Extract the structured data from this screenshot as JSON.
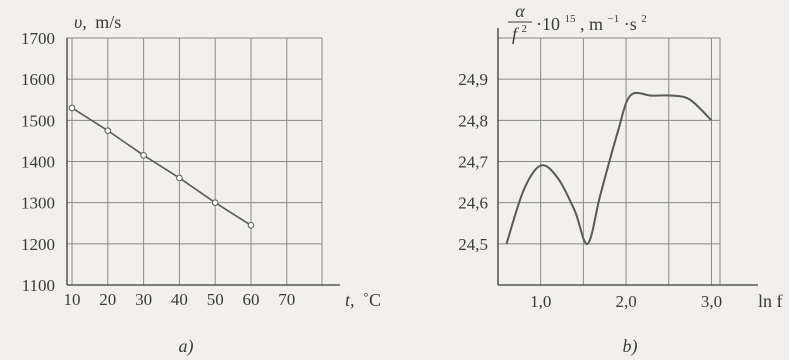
{
  "chart_data": [
    {
      "type": "line",
      "panel": "a)",
      "ylabel_symbol": "υ,",
      "ylabel_unit": "m/s",
      "xlabel_symbol": "t,",
      "xlabel_unit": "˚C",
      "xlim": [
        0,
        70
      ],
      "ylim": [
        1100,
        1700
      ],
      "x_ticks": [
        "10",
        "20",
        "30",
        "40",
        "50",
        "60",
        "70"
      ],
      "y_ticks": [
        "1100",
        "1200",
        "1300",
        "1400",
        "1500",
        "1600",
        "1700"
      ],
      "series": [
        {
          "x": [
            10,
            20,
            30,
            40,
            50,
            60
          ],
          "y": [
            1530,
            1475,
            1415,
            1360,
            1300,
            1245
          ]
        }
      ],
      "grid": true
    },
    {
      "type": "line",
      "panel": "b)",
      "ylabel_num": "α",
      "ylabel_den": "f",
      "ylabel_den_exp": "2",
      "ylabel_factor": "·10",
      "ylabel_factor_exp": "15",
      "ylabel_unit": ", m",
      "ylabel_unit_exp": "−1",
      "ylabel_unit2": "·s",
      "ylabel_unit2_exp": "2",
      "xlabel": "ln f",
      "xlim": [
        0.5,
        3.1
      ],
      "ylim": [
        24.4,
        25.0
      ],
      "x_ticks": [
        "1,0",
        "2,0",
        "3,0"
      ],
      "y_ticks": [
        "24,5",
        "24,6",
        "24,7",
        "24,8",
        "24,9"
      ],
      "series": [
        {
          "x": [
            0.6,
            0.8,
            1.0,
            1.2,
            1.4,
            1.55,
            1.7,
            1.9,
            2.05,
            2.3,
            2.55,
            2.75,
            3.0
          ],
          "y": [
            24.5,
            24.63,
            24.69,
            24.66,
            24.58,
            24.5,
            24.62,
            24.77,
            24.86,
            24.86,
            24.86,
            24.85,
            24.8
          ]
        }
      ],
      "grid": true
    }
  ]
}
